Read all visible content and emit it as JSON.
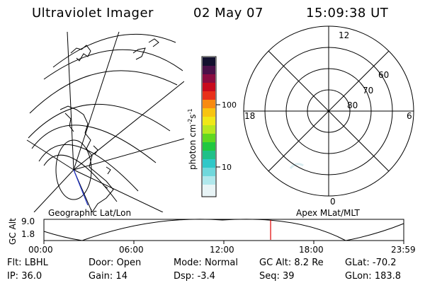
{
  "header": {
    "title": "Ultraviolet Imager",
    "date": "02 May 07",
    "time": "15:09:38 UT"
  },
  "colorbar": {
    "label_main": "photon cm",
    "label_exp1": "-2",
    "label_mid": "s",
    "label_exp2": "-1",
    "ticks": [
      "100",
      "10"
    ]
  },
  "polar_plot": {
    "mlt_labels": [
      "12",
      "18",
      "6",
      "0"
    ],
    "lat_labels": [
      "60",
      "70",
      "80"
    ]
  },
  "timeline": {
    "left_label": "Geographic Lat/Lon",
    "right_label": "Apex MLat/MLT",
    "axis_title": "GC Alt",
    "y_ticks": [
      "9.0",
      "1.8"
    ],
    "x_ticks": [
      "00:00",
      "06:00",
      "12:00",
      "18:00",
      "23:59"
    ],
    "current_time_fraction": 0.63,
    "line_color": "#e00000"
  },
  "status": {
    "filter_label": "Flt:",
    "filter_value": "LBHL",
    "door_label": "Door:",
    "door_value": "Open",
    "mode_label": "Mode:",
    "mode_value": "Normal",
    "gcalt_label": "GC Alt:",
    "gcalt_value": "8.2 Re",
    "glat_label": "GLat:",
    "glat_value": "-70.2",
    "ip_label": "IP:",
    "ip_value": "36.0",
    "gain_label": "Gain:",
    "gain_value": "14",
    "dsp_label": "Dsp:",
    "dsp_value": "-3.4",
    "seq_label": "Seq:",
    "seq_value": "39",
    "glon_label": "GLon:",
    "glon_value": "183.8"
  }
}
